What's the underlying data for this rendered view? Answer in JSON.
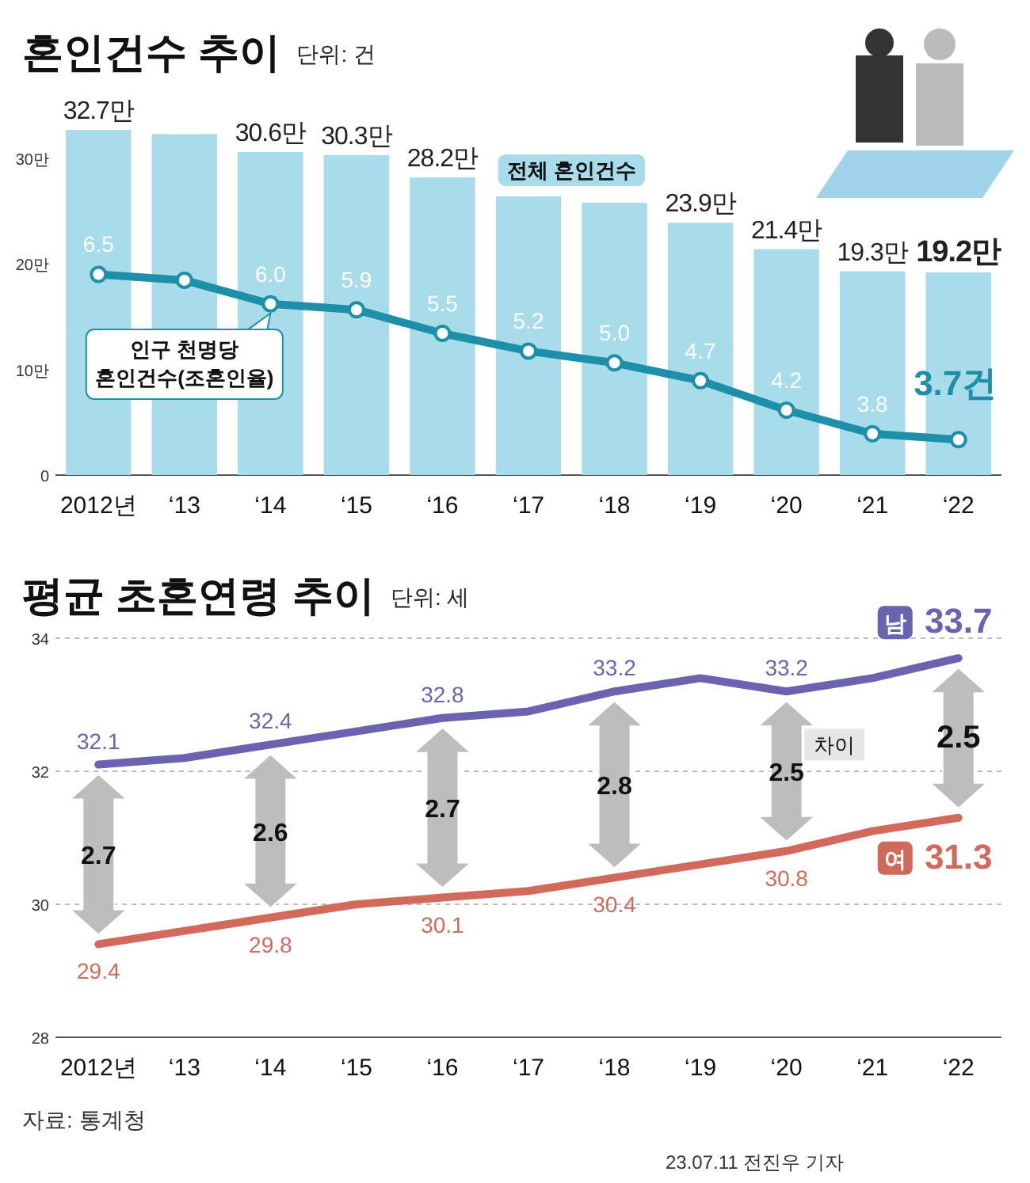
{
  "chart_data": [
    {
      "type": "bar",
      "title": "혼인건수 추이",
      "subtitle": "단위: 건",
      "categories": [
        "2012년",
        "‘13",
        "‘14",
        "‘15",
        "‘16",
        "‘17",
        "‘18",
        "‘19",
        "‘20",
        "‘21",
        "‘22"
      ],
      "series": [
        {
          "name": "전체 혼인건수",
          "type": "bar",
          "color": "#a8dcea",
          "values": [
            32.7,
            32.3,
            30.6,
            30.3,
            28.2,
            26.4,
            25.8,
            23.9,
            21.4,
            19.3,
            19.2
          ],
          "value_labels": [
            "32.7만",
            null,
            "30.6만",
            "30.3만",
            "28.2만",
            null,
            null,
            "23.9만",
            "21.4만",
            "19.3만",
            "19.2만"
          ]
        },
        {
          "name": "인구 천명당 혼인건수(조혼인율)",
          "type": "line",
          "axis": "y2",
          "color": "#1e8fa8",
          "marker": "circle",
          "values": [
            6.5,
            6.4,
            6.0,
            5.9,
            5.5,
            5.2,
            5.0,
            4.7,
            4.2,
            3.8,
            3.7
          ],
          "value_labels": [
            "6.5",
            null,
            "6.0",
            "5.9",
            "5.5",
            "5.2",
            "5.0",
            "4.7",
            "4.2",
            "3.8",
            "3.7건"
          ]
        }
      ],
      "ylim": [
        0,
        33
      ],
      "yticks": [
        0,
        {
          "value": 10,
          "label": "10만"
        },
        {
          "value": 20,
          "label": "20만"
        },
        {
          "value": 30,
          "label": "30만"
        }
      ],
      "y2lim": [
        3.1,
        9.0
      ]
    },
    {
      "type": "line",
      "title": "평균 초혼연령 추이",
      "subtitle": "단위: 세",
      "categories": [
        "2012년",
        "‘13",
        "‘14",
        "‘15",
        "‘16",
        "‘17",
        "‘18",
        "‘19",
        "‘20",
        "‘21",
        "‘22"
      ],
      "series": [
        {
          "name": "남",
          "color": "#6a64b0",
          "values": [
            32.1,
            32.2,
            32.4,
            32.6,
            32.8,
            32.9,
            33.2,
            33.4,
            33.2,
            33.4,
            33.7
          ],
          "value_labels": [
            "32.1",
            null,
            "32.4",
            null,
            "32.8",
            null,
            "33.2",
            null,
            "33.2",
            null,
            "33.7"
          ]
        },
        {
          "name": "여",
          "color": "#d26a5c",
          "values": [
            29.4,
            29.6,
            29.8,
            30.0,
            30.1,
            30.2,
            30.4,
            30.6,
            30.8,
            31.1,
            31.3
          ],
          "value_labels": [
            "29.4",
            null,
            "29.8",
            null,
            "30.1",
            null,
            "30.4",
            null,
            "30.8",
            null,
            "31.3"
          ]
        }
      ],
      "ylim": [
        28,
        34
      ],
      "yticks": [
        28,
        30,
        32,
        34
      ],
      "grid": "y",
      "legend": "right",
      "annotations": [
        "2.7",
        "2.6",
        "2.7",
        "2.8",
        "2.5",
        "2.5",
        "차이",
        "자료: 통계청",
        "23.07.11 전진우 기자"
      ]
    }
  ]
}
